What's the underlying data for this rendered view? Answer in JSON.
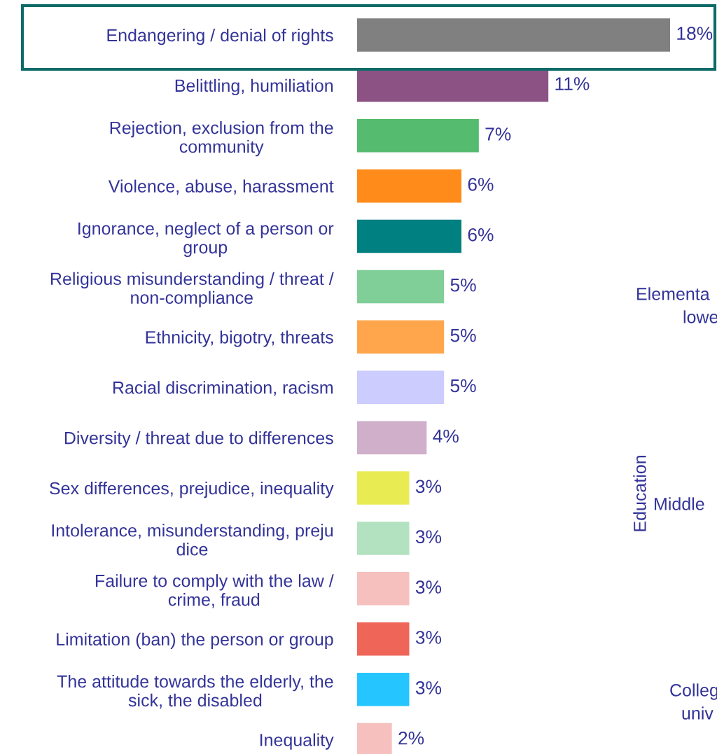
{
  "chart_data": {
    "type": "bar",
    "orientation": "horizontal",
    "categories": [
      "Endangering / denial of rights",
      "Belittling, humiliation",
      "Rejection, exclusion from the\ncommunity",
      "Violence, abuse, harassment",
      "Ignorance, neglect of a person or\ngroup",
      "Religious misunderstanding / threat /\nnon-compliance",
      "Ethnicity, bigotry, threats",
      "Racial discrimination, racism",
      "Diversity / threat due to differences",
      "Sex differences, prejudice, inequality",
      "Intolerance, misunderstanding, preju\ndice",
      "Failure to comply with the law /\ncrime, fraud",
      "Limitation (ban) the person or group",
      "The attitude towards the elderly, the\nsick, the disabled",
      "Inequality"
    ],
    "values": [
      18,
      11,
      7,
      6,
      6,
      5,
      5,
      5,
      4,
      3,
      3,
      3,
      3,
      3,
      2
    ],
    "colors": [
      "#808080",
      "#8b5283",
      "#55bb6e",
      "#ff8c1a",
      "#008080",
      "#80cf98",
      "#ffa64d",
      "#ccccff",
      "#d0afca",
      "#e8eb52",
      "#b3e2c0",
      "#f5c0bd",
      "#ef6659",
      "#25c5ff",
      "#f5c0bd"
    ],
    "value_labels": [
      "18%",
      "11%",
      "7%",
      "6%",
      "6%",
      "5%",
      "5%",
      "5%",
      "4%",
      "3%",
      "3%",
      "3%",
      "3%",
      "3%",
      "2%"
    ],
    "annotations": [
      "Elementa",
      "lowe",
      "Education",
      "Middle",
      "Colleg",
      "univ"
    ],
    "grid": false,
    "legend": false
  }
}
